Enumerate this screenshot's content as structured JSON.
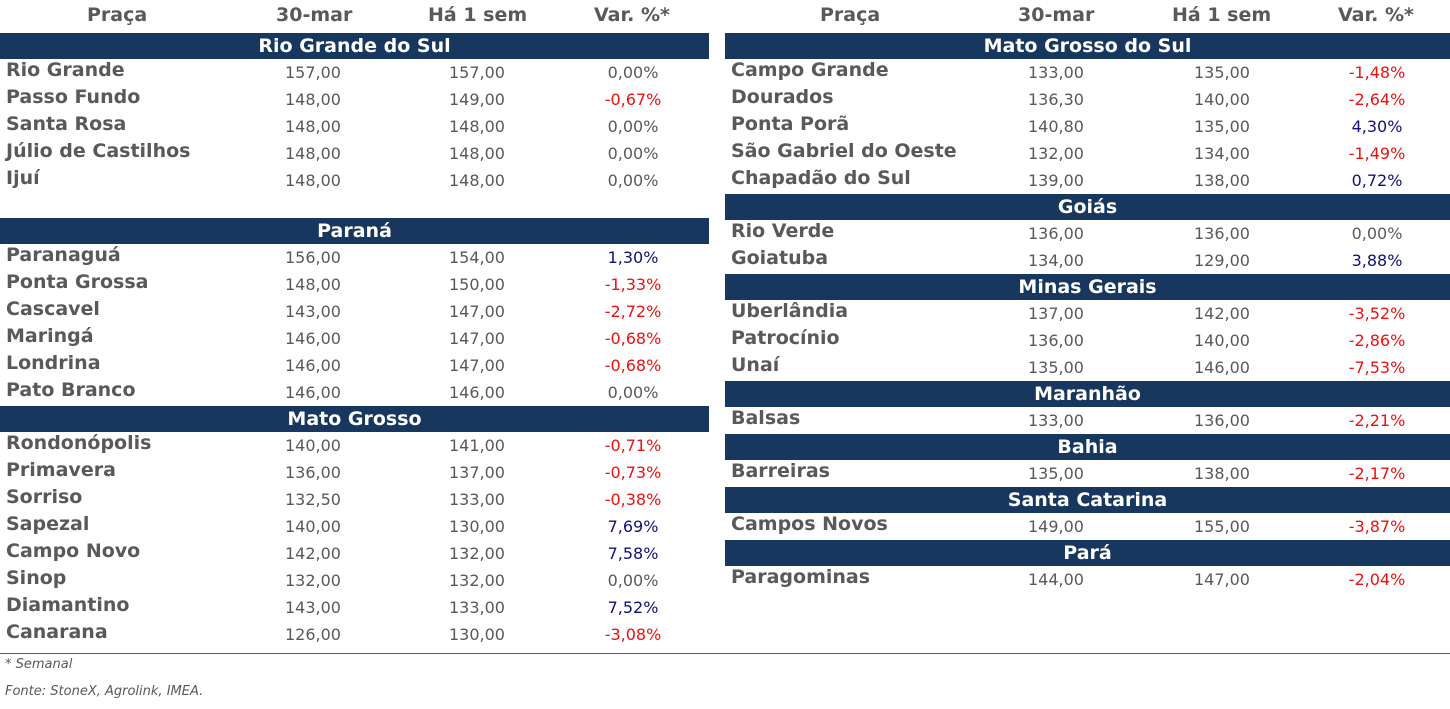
{
  "header": {
    "praca": "Praça",
    "date": "30-mar",
    "week": "Há 1 sem",
    "var": "Var. %*"
  },
  "left": [
    {
      "region": "Rio Grande do Sul",
      "rows": [
        {
          "name": "Rio Grande",
          "cur": "157,00",
          "prev": "157,00",
          "var": "0,00%",
          "sign": "zero"
        },
        {
          "name": "Passo Fundo",
          "cur": "148,00",
          "prev": "149,00",
          "var": "-0,67%",
          "sign": "neg"
        },
        {
          "name": "Santa Rosa",
          "cur": "148,00",
          "prev": "148,00",
          "var": "0,00%",
          "sign": "zero"
        },
        {
          "name": "Júlio de Castilhos",
          "cur": "148,00",
          "prev": "148,00",
          "var": "0,00%",
          "sign": "zero"
        },
        {
          "name": "Ijuí",
          "cur": "148,00",
          "prev": "148,00",
          "var": "0,00%",
          "sign": "zero"
        }
      ]
    },
    {
      "region": "Paraná",
      "rows": [
        {
          "name": "Paranaguá",
          "cur": "156,00",
          "prev": "154,00",
          "var": "1,30%",
          "sign": "pos"
        },
        {
          "name": "Ponta Grossa",
          "cur": "148,00",
          "prev": "150,00",
          "var": "-1,33%",
          "sign": "neg"
        },
        {
          "name": "Cascavel",
          "cur": "143,00",
          "prev": "147,00",
          "var": "-2,72%",
          "sign": "neg"
        },
        {
          "name": "Maringá",
          "cur": "146,00",
          "prev": "147,00",
          "var": "-0,68%",
          "sign": "neg"
        },
        {
          "name": "Londrina",
          "cur": "146,00",
          "prev": "147,00",
          "var": "-0,68%",
          "sign": "neg"
        },
        {
          "name": "Pato Branco",
          "cur": "146,00",
          "prev": "146,00",
          "var": "0,00%",
          "sign": "zero"
        }
      ]
    },
    {
      "region": "Mato Grosso",
      "rows": [
        {
          "name": "Rondonópolis",
          "cur": "140,00",
          "prev": "141,00",
          "var": "-0,71%",
          "sign": "neg"
        },
        {
          "name": "Primavera",
          "cur": "136,00",
          "prev": "137,00",
          "var": "-0,73%",
          "sign": "neg"
        },
        {
          "name": "Sorriso",
          "cur": "132,50",
          "prev": "133,00",
          "var": "-0,38%",
          "sign": "neg"
        },
        {
          "name": "Sapezal",
          "cur": "140,00",
          "prev": "130,00",
          "var": "7,69%",
          "sign": "pos"
        },
        {
          "name": "Campo Novo",
          "cur": "142,00",
          "prev": "132,00",
          "var": "7,58%",
          "sign": "pos"
        },
        {
          "name": "Sinop",
          "cur": "132,00",
          "prev": "132,00",
          "var": "0,00%",
          "sign": "zero"
        },
        {
          "name": "Diamantino",
          "cur": "143,00",
          "prev": "133,00",
          "var": "7,52%",
          "sign": "pos"
        },
        {
          "name": "Canarana",
          "cur": "126,00",
          "prev": "130,00",
          "var": "-3,08%",
          "sign": "neg"
        }
      ]
    }
  ],
  "right": [
    {
      "region": "Mato Grosso do Sul",
      "rows": [
        {
          "name": "Campo Grande",
          "cur": "133,00",
          "prev": "135,00",
          "var": "-1,48%",
          "sign": "neg"
        },
        {
          "name": "Dourados",
          "cur": "136,30",
          "prev": "140,00",
          "var": "-2,64%",
          "sign": "neg"
        },
        {
          "name": "Ponta Porã",
          "cur": "140,80",
          "prev": "135,00",
          "var": "4,30%",
          "sign": "pos"
        },
        {
          "name": "São Gabriel do Oeste",
          "cur": "132,00",
          "prev": "134,00",
          "var": "-1,49%",
          "sign": "neg"
        },
        {
          "name": "Chapadão do Sul",
          "cur": "139,00",
          "prev": "138,00",
          "var": "0,72%",
          "sign": "pos"
        }
      ]
    },
    {
      "region": "Goiás",
      "rows": [
        {
          "name": "Rio Verde",
          "cur": "136,00",
          "prev": "136,00",
          "var": "0,00%",
          "sign": "zero"
        },
        {
          "name": "Goiatuba",
          "cur": "134,00",
          "prev": "129,00",
          "var": "3,88%",
          "sign": "pos"
        }
      ]
    },
    {
      "region": "Minas Gerais",
      "rows": [
        {
          "name": "Uberlândia",
          "cur": "137,00",
          "prev": "142,00",
          "var": "-3,52%",
          "sign": "neg"
        },
        {
          "name": "Patrocínio",
          "cur": "136,00",
          "prev": "140,00",
          "var": "-2,86%",
          "sign": "neg"
        },
        {
          "name": "Unaí",
          "cur": "135,00",
          "prev": "146,00",
          "var": "-7,53%",
          "sign": "neg"
        }
      ]
    },
    {
      "region": "Maranhão",
      "rows": [
        {
          "name": "Balsas",
          "cur": "133,00",
          "prev": "136,00",
          "var": "-2,21%",
          "sign": "neg"
        }
      ]
    },
    {
      "region": "Bahia",
      "rows": [
        {
          "name": "Barreiras",
          "cur": "135,00",
          "prev": "138,00",
          "var": "-2,17%",
          "sign": "neg"
        }
      ]
    },
    {
      "region": "Santa Catarina",
      "rows": [
        {
          "name": "Campos Novos",
          "cur": "149,00",
          "prev": "155,00",
          "var": "-3,87%",
          "sign": "neg"
        }
      ]
    },
    {
      "region": "Pará",
      "rows": [
        {
          "name": "Paragominas",
          "cur": "144,00",
          "prev": "147,00",
          "var": "-2,04%",
          "sign": "neg"
        }
      ]
    }
  ],
  "footer": {
    "note": "* Semanal",
    "source": "Fonte: StoneX, Agrolink, IMEA."
  }
}
